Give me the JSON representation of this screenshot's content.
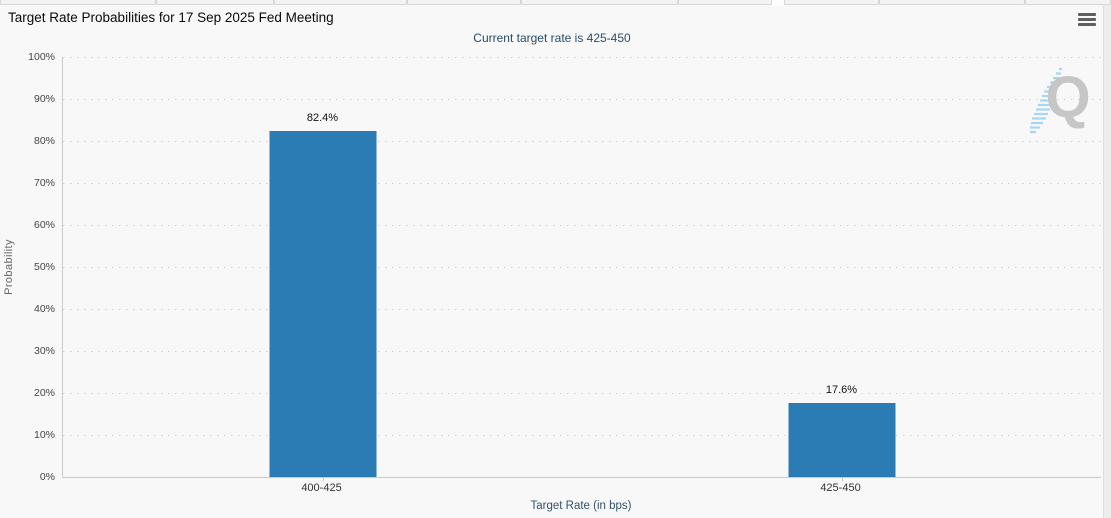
{
  "header": {
    "menu_icon": "hamburger-menu"
  },
  "chart_data": {
    "type": "bar",
    "title": "Target Rate Probabilities for 17 Sep 2025 Fed Meeting",
    "subtitle": "Current target rate is 425-450",
    "categories": [
      "400-425",
      "425-450"
    ],
    "values": [
      82.4,
      17.6
    ],
    "value_labels": [
      "82.4%",
      "17.6%"
    ],
    "xlabel": "Target Rate (in bps)",
    "ylabel": "Probability",
    "ylim": [
      0,
      100
    ],
    "ytick_step": 10,
    "ytick_suffix": "%",
    "grid": "dotted-horizontal",
    "legend_position": "none",
    "bar_color": "#2b7cb5",
    "watermark": "Q"
  },
  "colors": {
    "bar": "#2b7cb5",
    "subtitle_text": "#2b4a67",
    "axis_title_text": "#33536e",
    "tick_text": "#444444",
    "axis_line": "#c9c9c9",
    "panel_bg": "#f8f8f8",
    "page_bg": "#ededed",
    "watermark_q": "#c6c6c6",
    "watermark_stripes": "#a6d7ef"
  }
}
